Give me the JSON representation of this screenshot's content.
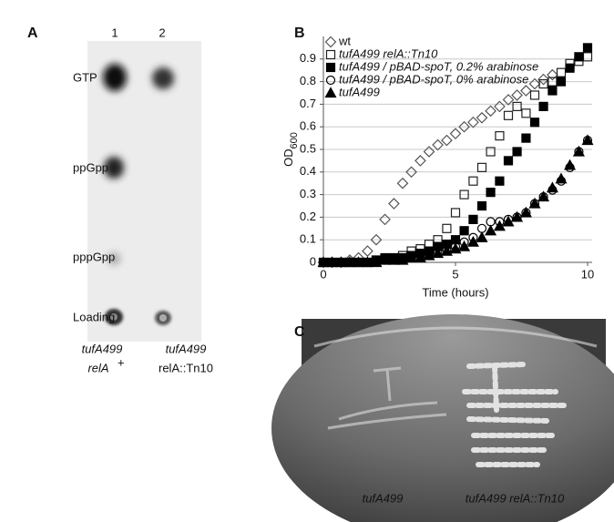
{
  "panel_a": {
    "label": "A",
    "lanes": [
      "1",
      "2"
    ],
    "spots": [
      "GTP",
      "ppGpp",
      "pppGpp",
      "Loading"
    ],
    "captions": [
      {
        "strain": "tufA499",
        "genotype": "relA",
        "sup": "+"
      },
      {
        "strain": "tufA499",
        "genotype": "relA::Tn10"
      }
    ]
  },
  "chart_data": {
    "type": "scatter",
    "panel_label": "B",
    "x_label": "Time (hours)",
    "y_label": "OD",
    "y_label_sub": "600",
    "x": [
      0,
      0.33,
      0.67,
      1,
      1.33,
      1.67,
      2,
      2.33,
      2.67,
      3,
      3.33,
      3.67,
      4,
      4.33,
      4.67,
      5,
      5.33,
      5.67,
      6,
      6.33,
      6.67,
      7,
      7.33,
      7.67,
      8,
      8.33,
      8.67,
      9,
      9.33,
      9.67,
      10
    ],
    "xlim": [
      0,
      10
    ],
    "xticks": [
      0,
      5,
      10
    ],
    "ylim": [
      0,
      1
    ],
    "yticks": [
      0,
      0.1,
      0.2,
      0.3,
      0.4,
      0.5,
      0.6,
      0.7,
      0.8,
      0.9
    ],
    "grid": true,
    "legend": "upper-left",
    "series": [
      {
        "name": "wt",
        "color": "#555555",
        "marker": "diamond-open",
        "values": [
          0,
          0,
          0,
          0.01,
          0.02,
          0.05,
          0.1,
          0.19,
          0.26,
          0.35,
          0.4,
          0.45,
          0.49,
          0.52,
          0.54,
          0.57,
          0.6,
          0.62,
          0.64,
          0.67,
          0.69,
          0.72,
          0.74,
          0.76,
          0.79,
          0.81,
          0.83,
          null,
          null,
          null,
          null
        ]
      },
      {
        "name": "tufA499 relA::Tn10",
        "color": "#222222",
        "marker": "square-open",
        "values": [
          0,
          0,
          0,
          0,
          0,
          0,
          0.01,
          0.02,
          0.02,
          0.03,
          0.05,
          0.06,
          0.08,
          0.1,
          0.15,
          0.22,
          0.3,
          0.36,
          0.42,
          0.49,
          0.56,
          0.65,
          0.69,
          0.66,
          0.74,
          0.79,
          0.8,
          0.84,
          0.88,
          0.89,
          0.91
        ]
      },
      {
        "name": "tufA499 / pBAD-spoT, 0.2% arabinose",
        "color": "#000000",
        "marker": "square-filled",
        "values": [
          0,
          0,
          0,
          0,
          0,
          0,
          0.01,
          0.02,
          0.02,
          0.02,
          0.03,
          0.04,
          0.05,
          0.07,
          0.08,
          0.1,
          0.14,
          0.19,
          0.25,
          0.31,
          0.36,
          0.45,
          0.49,
          0.55,
          0.62,
          0.69,
          0.76,
          0.8,
          0.86,
          0.91,
          0.95
        ]
      },
      {
        "name": "tufA499 / pBAD-spoT, 0% arabinose",
        "color": "#000000",
        "marker": "circle-open",
        "values": [
          0,
          0,
          0,
          0,
          0,
          0,
          0,
          0.01,
          0.01,
          0.02,
          0.02,
          0.03,
          0.04,
          0.05,
          0.06,
          0.07,
          0.09,
          0.11,
          0.15,
          0.18,
          0.18,
          0.19,
          0.2,
          0.22,
          0.26,
          0.29,
          0.32,
          0.36,
          0.42,
          0.49,
          0.54
        ]
      },
      {
        "name": "tufA499",
        "color": "#000000",
        "marker": "triangle-filled",
        "values": [
          0,
          0,
          0,
          0,
          0,
          0,
          0,
          0.01,
          0.01,
          0.01,
          0.02,
          0.02,
          0.03,
          0.04,
          0.05,
          0.06,
          0.07,
          0.09,
          0.11,
          0.14,
          0.16,
          0.18,
          0.2,
          0.22,
          0.26,
          0.29,
          0.33,
          0.37,
          0.43,
          0.49,
          0.54
        ]
      }
    ]
  },
  "panel_c": {
    "label": "C",
    "captions": [
      "tufA499",
      "tufA499 relA::Tn10"
    ]
  }
}
